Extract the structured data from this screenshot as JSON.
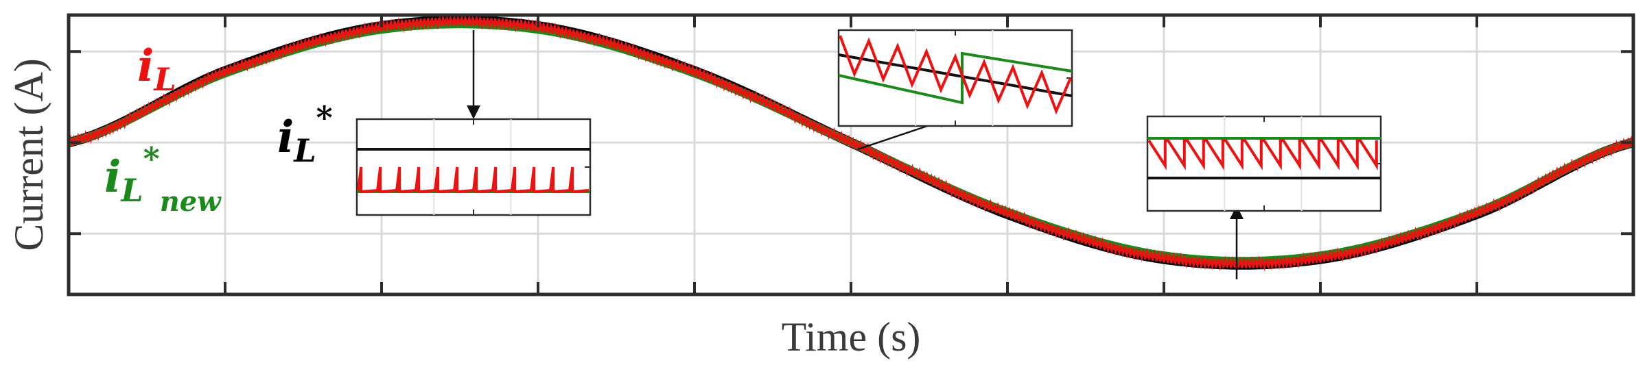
{
  "chart_data": {
    "type": "line",
    "xlabel": "Time (s)",
    "ylabel": "Current (A)",
    "xlim": [
      0,
      1
    ],
    "ylim": [
      -1.25,
      1.05
    ],
    "x_ticks": [
      0,
      0.1,
      0.2,
      0.3,
      0.4,
      0.5,
      0.6,
      0.7,
      0.8,
      0.9,
      1.0
    ],
    "y_ticks": [
      -0.75,
      0,
      0.75
    ],
    "grid": true,
    "series": [
      {
        "name": "i_L",
        "color": "#ee1111",
        "x": [
          0,
          0.1,
          0.2,
          0.3,
          0.4,
          0.5,
          0.6,
          0.7,
          0.8,
          0.9,
          1.0
        ],
        "y": [
          0,
          0.58,
          0.95,
          0.95,
          0.58,
          0,
          -0.58,
          -0.95,
          -0.95,
          -0.58,
          0
        ]
      },
      {
        "name": "i_L*",
        "color": "#000000",
        "x": [
          0,
          0.1,
          0.2,
          0.3,
          0.4,
          0.5,
          0.6,
          0.7,
          0.8,
          0.9,
          1.0
        ],
        "y": [
          0,
          0.59,
          0.96,
          0.96,
          0.59,
          0,
          -0.59,
          -0.96,
          -0.96,
          -0.59,
          0
        ]
      },
      {
        "name": "i_L*_new",
        "color": "#1a8a1a",
        "x": [
          0,
          0.1,
          0.2,
          0.3,
          0.4,
          0.5,
          0.6,
          0.7,
          0.8,
          0.9,
          1.0
        ],
        "y": [
          0,
          0.57,
          0.93,
          0.93,
          0.57,
          0,
          -0.57,
          -0.93,
          -0.93,
          -0.57,
          0
        ]
      }
    ],
    "annotations": [
      {
        "main": "i",
        "sub": "L",
        "color": "#ee1111"
      },
      {
        "main": "i",
        "sub": "L",
        "sup": "*",
        "color": "#000000"
      },
      {
        "main": "i",
        "sub": "L",
        "sup": "*",
        "sub2": "new",
        "color": "#1a8a1a"
      }
    ],
    "insets": [
      {
        "name": "peak-zoom",
        "shows": "i_L* above i_L ripple resting on i_L*_new"
      },
      {
        "name": "zero-crossing-zoom",
        "shows": "i_L*_new step during falling slope"
      },
      {
        "name": "trough-zoom",
        "shows": "i_L*_new above i_L ripple above i_L*"
      }
    ]
  }
}
